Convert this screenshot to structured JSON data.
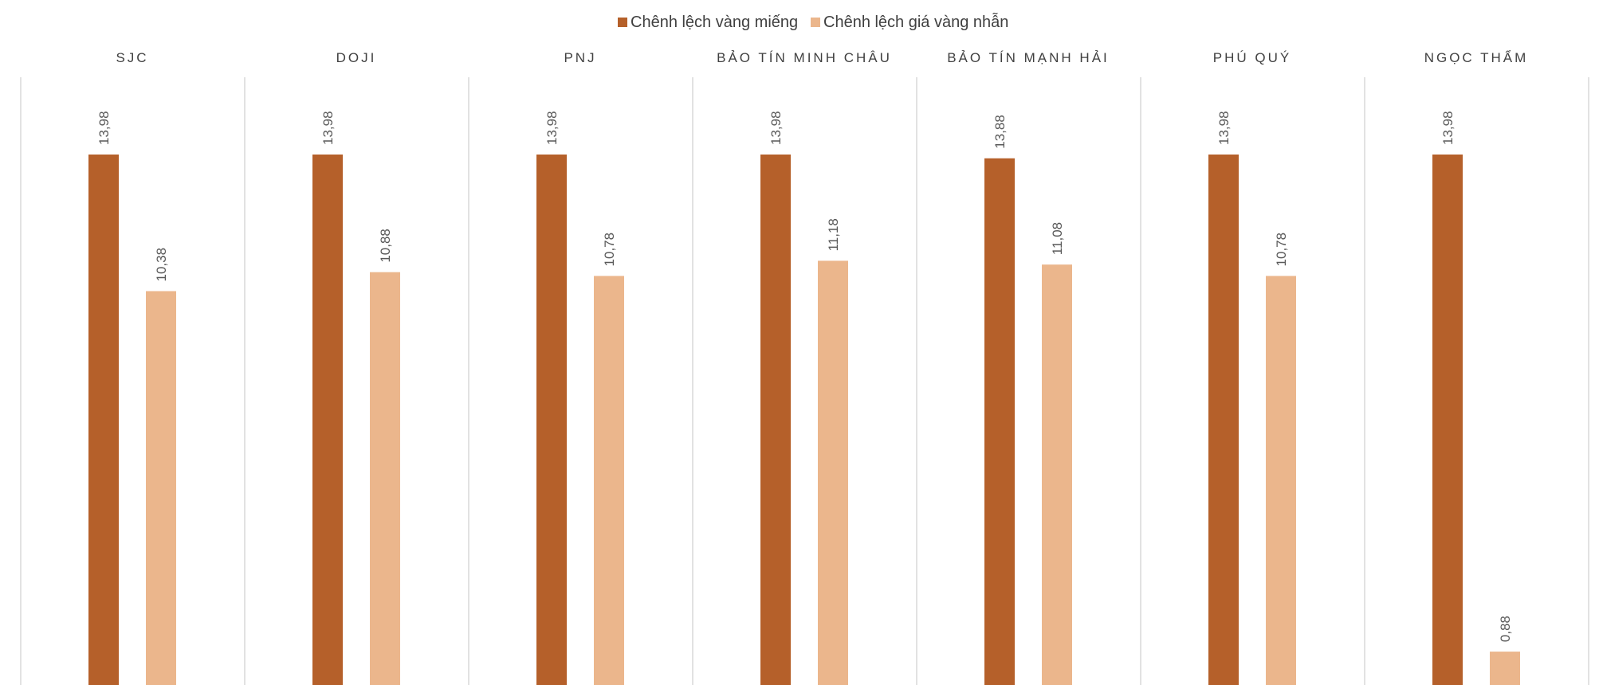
{
  "colors": {
    "series1": "#b5602a",
    "series2": "#ebb68c",
    "divider": "#d9d9d9",
    "text": "#404040",
    "value_text": "#595959"
  },
  "chart_data": {
    "type": "bar",
    "title": "",
    "xlabel": "",
    "ylabel": "",
    "ylim": [
      0,
      15
    ],
    "grid": false,
    "legend_position": "top-center",
    "categories": [
      "SJC",
      "DOJI",
      "PNJ",
      "BẢO TÍN MINH CHÂU",
      "BẢO TÍN MẠNH HẢI",
      "PHÚ QUÝ",
      "NGỌC THẨM"
    ],
    "series": [
      {
        "name": "Chênh lệch vàng miếng",
        "values": [
          13.98,
          13.98,
          13.98,
          13.98,
          13.88,
          13.98,
          13.98
        ],
        "labels": [
          "13,98",
          "13,98",
          "13,98",
          "13,98",
          "13,88",
          "13,98",
          "13,98"
        ]
      },
      {
        "name": "Chênh lệch giá vàng nhẫn",
        "values": [
          10.38,
          10.88,
          10.78,
          11.18,
          11.08,
          10.78,
          0.88
        ],
        "labels": [
          "10,38",
          "10,88",
          "10,78",
          "11,18",
          "11,08",
          "10,78",
          "0,88"
        ]
      }
    ]
  }
}
